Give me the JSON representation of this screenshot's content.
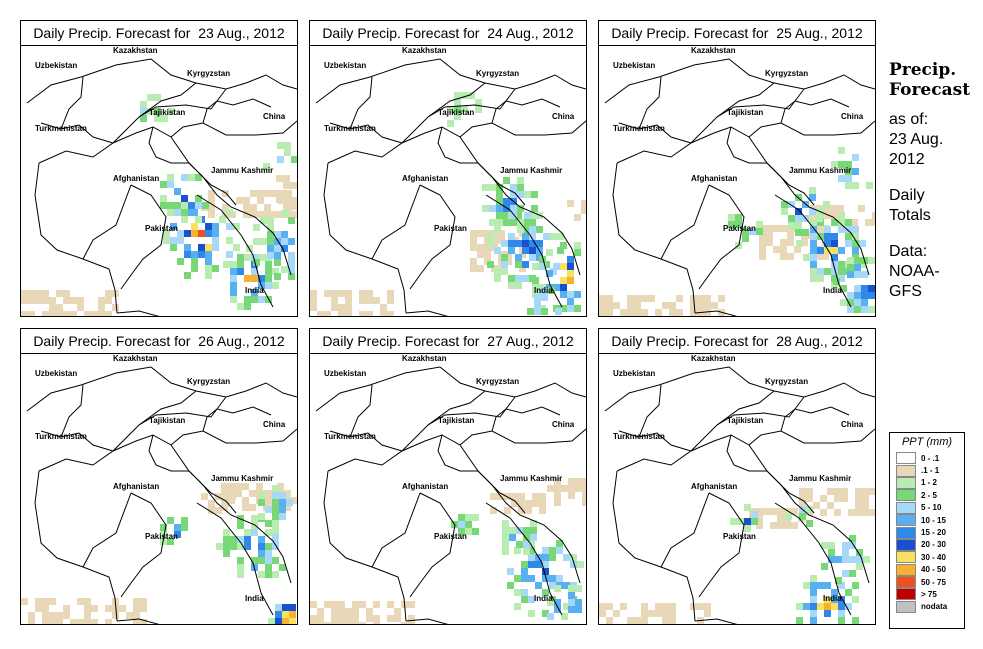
{
  "panels": [
    {
      "title": "Daily Precip. Forecast for  23 Aug., 2012"
    },
    {
      "title": "Daily Precip. Forecast for  24 Aug., 2012"
    },
    {
      "title": "Daily Precip. Forecast for  25 Aug., 2012"
    },
    {
      "title": "Daily Precip. Forecast for  26 Aug., 2012"
    },
    {
      "title": "Daily Precip. Forecast for  27 Aug., 2012"
    },
    {
      "title": "Daily Precip. Forecast for  28 Aug., 2012"
    }
  ],
  "map_labels": {
    "kazakhstan": "Kazakhstan",
    "uzbekistan": "Uzbekistan",
    "kyrgyzstan": "Kyrgyzstan",
    "tajikistan": "Tajikistan",
    "china": "China",
    "turkmenistan": "Turkmenistan",
    "afghanistan": "Afghanistan",
    "jammu_kashmir": "Jammu Kashmir",
    "pakistan": "Pakistan",
    "india": "India"
  },
  "side": {
    "title_line1": "Precip.",
    "title_line2": "Forecast",
    "asof_line1": "as of:",
    "asof_line2": "23 Aug.",
    "asof_line3": "2012",
    "totals_line1": "Daily",
    "totals_line2": "Totals",
    "data_line1": "Data:",
    "data_line2": "NOAA-",
    "data_line3": "GFS"
  },
  "legend": {
    "title": "PPT (mm)",
    "items": [
      {
        "label": "0 - .1",
        "color": "#ffffff"
      },
      {
        "label": ".1 - 1",
        "color": "#e8d8b8"
      },
      {
        "label": "1 - 2",
        "color": "#b8ecb0"
      },
      {
        "label": "2 - 5",
        "color": "#78d878"
      },
      {
        "label": "5 - 10",
        "color": "#a8d8f8"
      },
      {
        "label": "10 - 15",
        "color": "#58b0f0"
      },
      {
        "label": "15 - 20",
        "color": "#3088e8"
      },
      {
        "label": "20 - 30",
        "color": "#1850d0"
      },
      {
        "label": "30 - 40",
        "color": "#f8e060"
      },
      {
        "label": "40 - 50",
        "color": "#f8b030"
      },
      {
        "label": "50 - 75",
        "color": "#f05020"
      },
      {
        "label": "> 75",
        "color": "#c00000"
      },
      {
        "label": "nodata",
        "color": "#c0c0c0"
      }
    ]
  }
}
